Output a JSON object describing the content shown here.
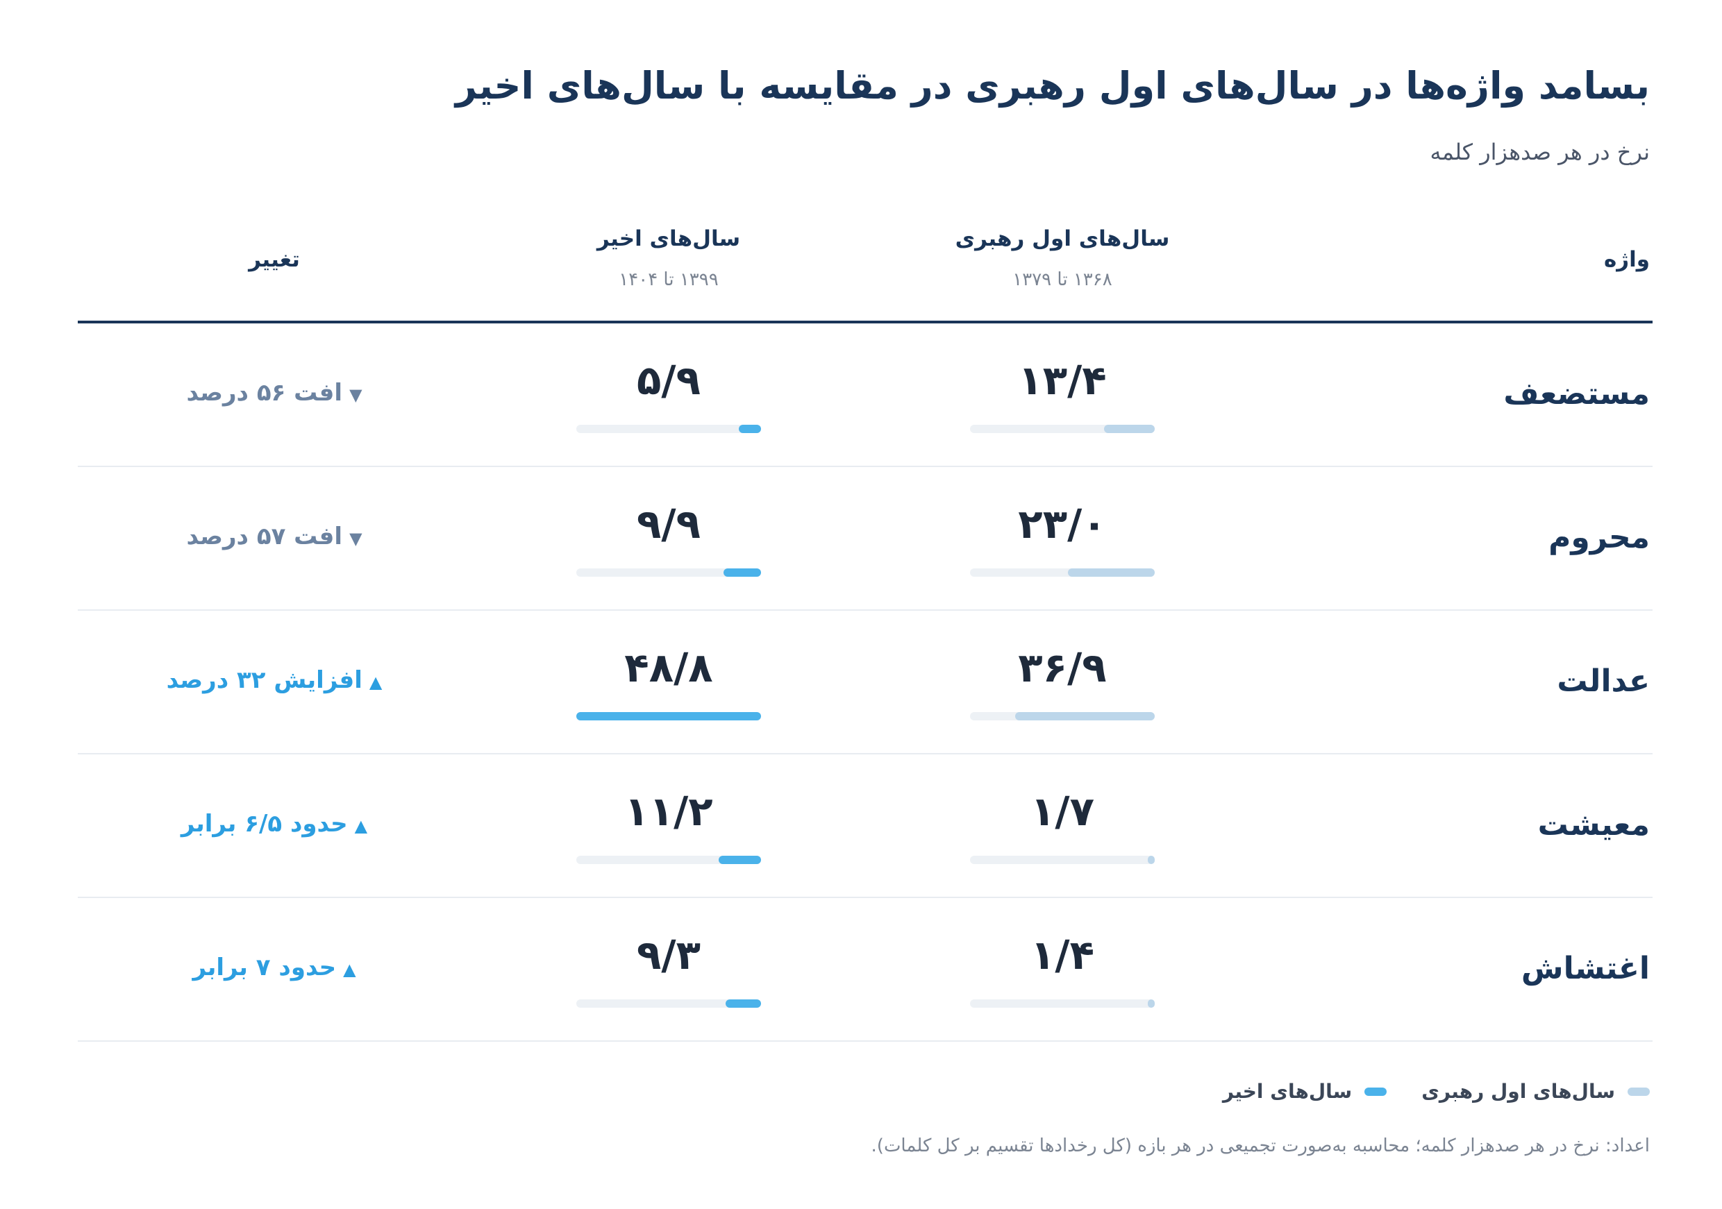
{
  "header": {
    "title": "بسامد واژه‌ها در سال‌های اول رهبری در مقایسه با سال‌های اخیر",
    "subtitle": "نرخ در هر صدهزار کلمه"
  },
  "columns": {
    "word": "واژه",
    "early_label": "سال‌های اول رهبری",
    "early_range": "۱۳۶۸ تا ۱۳۷۹",
    "recent_label": "سال‌های اخیر",
    "recent_range": "۱۳۹۹ تا ۱۴۰۴",
    "change": "تغییر"
  },
  "colors": {
    "early": "#bcd6ea",
    "recent": "#4ab2ea",
    "down": "#6b82a0",
    "up": "#2c9ee0"
  },
  "chart_data": {
    "type": "table",
    "scale_max": 48.8,
    "rows": [
      {
        "word": "مستضعف",
        "early": 13.4,
        "early_text": "۱۳/۴",
        "recent": 5.9,
        "recent_text": "۵/۹",
        "change": "افت ۵۶ درصد",
        "direction": "down"
      },
      {
        "word": "محروم",
        "early": 23.0,
        "early_text": "۲۳/۰",
        "recent": 9.9,
        "recent_text": "۹/۹",
        "change": "افت ۵۷ درصد",
        "direction": "down"
      },
      {
        "word": "عدالت",
        "early": 36.9,
        "early_text": "۳۶/۹",
        "recent": 48.8,
        "recent_text": "۴۸/۸",
        "change": "افزایش ۳۲ درصد",
        "direction": "up"
      },
      {
        "word": "معیشت",
        "early": 1.7,
        "early_text": "۱/۷",
        "recent": 11.2,
        "recent_text": "۱۱/۲",
        "change": "حدود ۶/۵ برابر",
        "direction": "up"
      },
      {
        "word": "اغتشاش",
        "early": 1.4,
        "early_text": "۱/۴",
        "recent": 9.3,
        "recent_text": "۹/۳",
        "change": "حدود ۷ برابر",
        "direction": "up"
      }
    ]
  },
  "legend": {
    "early": "سال‌های اول رهبری",
    "recent": "سال‌های اخیر"
  },
  "footnote": "اعداد: نرخ در هر صدهزار کلمه؛ محاسبه به‌صورت تجمیعی در هر بازه (کل رخدادها تقسیم بر کل کلمات)."
}
